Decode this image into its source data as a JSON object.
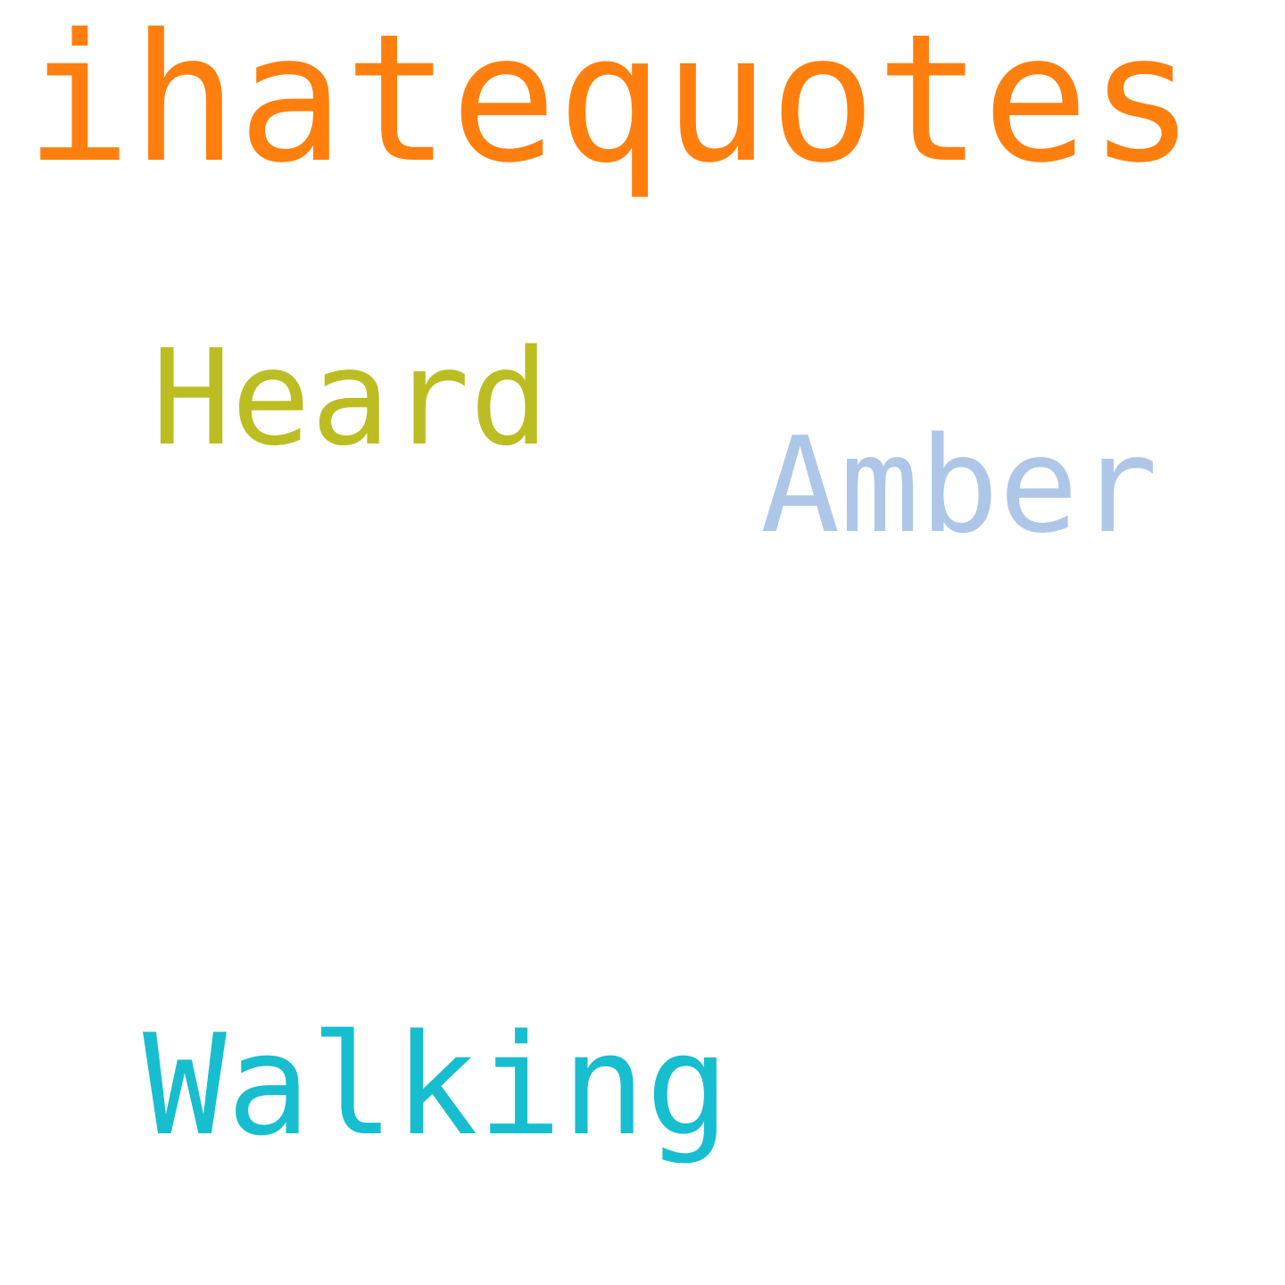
{
  "words": [
    {
      "text": "ihatequotes",
      "color": "#ff7f0e"
    },
    {
      "text": "Heard",
      "color": "#bcbd22"
    },
    {
      "text": "Amber",
      "color": "#aec7e8"
    },
    {
      "text": "Walking",
      "color": "#17becf"
    }
  ]
}
